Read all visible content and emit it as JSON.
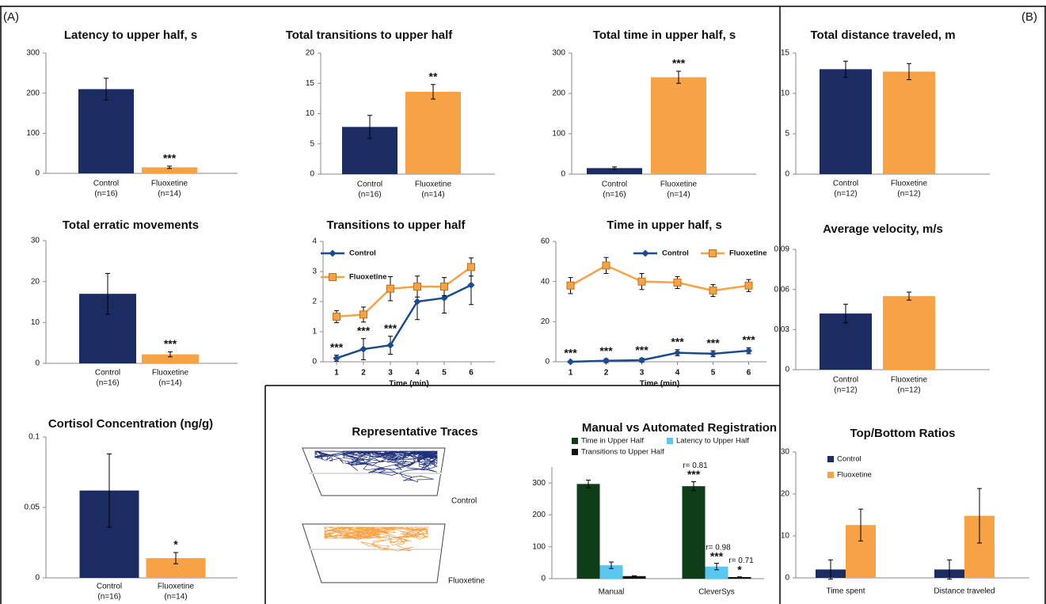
{
  "panel_labels": [
    "(A)",
    "(B)"
  ],
  "traces": {
    "title": "Representative Traces",
    "labels": [
      "Control",
      "Fluoxetine"
    ]
  },
  "chart_data": [
    {
      "type": "bar",
      "title": "Latency to upper half, s",
      "categories": [
        "Control",
        "Fluoxetine"
      ],
      "n_labels": [
        "(n=16)",
        "(n=14)"
      ],
      "values": [
        210,
        15
      ],
      "errors": [
        27,
        3
      ],
      "colors": [
        "#1b2c63",
        "#f7a245"
      ],
      "significance": [
        null,
        "***"
      ],
      "ylim": [
        0,
        300
      ],
      "yticks": [
        0,
        100,
        200,
        300
      ]
    },
    {
      "type": "bar",
      "title": "Total transitions to upper half",
      "categories": [
        "Control",
        "Fluoxetine"
      ],
      "n_labels": [
        "(n=16)",
        "(n=14)"
      ],
      "values": [
        7.8,
        13.6
      ],
      "errors": [
        1.9,
        1.2
      ],
      "colors": [
        "#1b2c63",
        "#f7a245"
      ],
      "significance": [
        null,
        "**"
      ],
      "ylim": [
        0,
        20
      ],
      "yticks": [
        0,
        5,
        10,
        15,
        20
      ]
    },
    {
      "type": "bar",
      "title": "Total time in upper half, s",
      "categories": [
        "Control",
        "Fluoxetine"
      ],
      "n_labels": [
        "(n=16)",
        "(n=14)"
      ],
      "values": [
        15,
        240
      ],
      "errors": [
        3,
        15
      ],
      "colors": [
        "#1b2c63",
        "#f7a245"
      ],
      "significance": [
        null,
        "***"
      ],
      "ylim": [
        0,
        300
      ],
      "yticks": [
        0,
        100,
        200,
        300
      ]
    },
    {
      "type": "bar",
      "title": "Total erratic movements",
      "categories": [
        "Control",
        "Fluoxetine"
      ],
      "n_labels": [
        "(n=16)",
        "(n=14)"
      ],
      "values": [
        17,
        2.2
      ],
      "errors": [
        5,
        0.6
      ],
      "colors": [
        "#1b2c63",
        "#f7a245"
      ],
      "significance": [
        null,
        "***"
      ],
      "ylim": [
        0,
        30
      ],
      "yticks": [
        0,
        10,
        20,
        30
      ]
    },
    {
      "type": "line",
      "title": "Transitions to upper half",
      "xlabel": "Time (min)",
      "x": [
        1,
        2,
        3,
        4,
        5,
        6
      ],
      "xlim": [
        0.5,
        6.5
      ],
      "xticks": [
        1,
        2,
        3,
        4,
        5,
        6
      ],
      "series": [
        {
          "name": "Control",
          "color": "#1b4b8f",
          "marker": "diamond",
          "values": [
            0.12,
            0.42,
            0.55,
            2.0,
            2.12,
            2.55
          ],
          "errors": [
            0.1,
            0.35,
            0.3,
            0.6,
            0.5,
            0.65
          ],
          "significance": [
            "***",
            "***",
            "***",
            null,
            null,
            null
          ]
        },
        {
          "name": "Fluoxetine",
          "color": "#f7a245",
          "marker": "square",
          "values": [
            1.5,
            1.57,
            2.43,
            2.5,
            2.5,
            3.15
          ],
          "errors": [
            0.2,
            0.25,
            0.4,
            0.35,
            0.3,
            0.3
          ]
        }
      ],
      "ylim": [
        0,
        4
      ],
      "yticks": [
        0,
        1,
        2,
        3,
        4
      ],
      "legend": "upper left"
    },
    {
      "type": "line",
      "title": "Time in upper half, s",
      "xlabel": "Time (min)",
      "x": [
        1,
        2,
        3,
        4,
        5,
        6
      ],
      "xlim": [
        0.5,
        6.5
      ],
      "xticks": [
        1,
        2,
        3,
        4,
        5,
        6
      ],
      "series": [
        {
          "name": "Control",
          "color": "#1b4b8f",
          "marker": "diamond",
          "values": [
            0,
            0.5,
            0.8,
            4.5,
            4,
            5.5
          ],
          "errors": [
            0.5,
            1,
            1,
            1.5,
            1.5,
            1.5
          ],
          "significance": [
            "***",
            "***",
            "***",
            "***",
            "***",
            "***"
          ]
        },
        {
          "name": "Fluoxetine",
          "color": "#f7a245",
          "marker": "square",
          "values": [
            38,
            48,
            40,
            39.5,
            35.5,
            38
          ],
          "errors": [
            4,
            4,
            4,
            3,
            3,
            3
          ]
        }
      ],
      "ylim": [
        0,
        60
      ],
      "yticks": [
        0,
        20,
        40,
        60
      ],
      "legend": "upper right"
    },
    {
      "type": "bar",
      "title": "Cortisol Concentration (ng/g)",
      "categories": [
        "Control",
        "Fluoxetine"
      ],
      "n_labels": [
        "(n=16)",
        "(n=14)"
      ],
      "values": [
        0.062,
        0.014
      ],
      "errors": [
        0.026,
        0.004
      ],
      "colors": [
        "#1b2c63",
        "#f7a245"
      ],
      "significance": [
        null,
        "*"
      ],
      "ylim": [
        0,
        0.1
      ],
      "yticks": [
        0,
        0.05,
        0.1
      ]
    },
    {
      "type": "bar",
      "title": "Total distance traveled, m",
      "categories": [
        "Control",
        "Fluoxetine"
      ],
      "n_labels": [
        "(n=12)",
        "(n=12)"
      ],
      "values": [
        13,
        12.7
      ],
      "errors": [
        1,
        1
      ],
      "colors": [
        "#1b2c63",
        "#f7a245"
      ],
      "ylim": [
        0,
        15
      ],
      "yticks": [
        0,
        5,
        10,
        15
      ]
    },
    {
      "type": "bar",
      "title": "Average velocity, m/s",
      "categories": [
        "Control",
        "Fluoxetine"
      ],
      "n_labels": [
        "(n=12)",
        "(n=12)"
      ],
      "values": [
        0.042,
        0.055
      ],
      "errors": [
        0.007,
        0.003
      ],
      "colors": [
        "#1b2c63",
        "#f7a245"
      ],
      "ylim": [
        0,
        0.09
      ],
      "yticks": [
        0,
        0.03,
        0.06,
        0.09
      ]
    },
    {
      "type": "grouped_bar",
      "title": "Top/Bottom Ratios",
      "categories": [
        "Time spent",
        "Distance traveled"
      ],
      "series": [
        {
          "name": "Control",
          "color": "#1b2c63",
          "values": [
            2,
            2
          ],
          "errors": [
            2.3,
            2.3
          ]
        },
        {
          "name": "Fluoxetine",
          "color": "#f7a245",
          "values": [
            12.6,
            14.8
          ],
          "errors": [
            3.8,
            6.5
          ]
        }
      ],
      "ylim": [
        0,
        30
      ],
      "yticks": [
        0,
        10,
        20,
        30
      ],
      "legend": "upper left"
    },
    {
      "type": "grouped_bar",
      "title": "Manual vs Automated Registration",
      "categories": [
        "Manual",
        "CleverSys"
      ],
      "series": [
        {
          "name": "Time in Upper Half",
          "color": "#0e3d17",
          "values": [
            297,
            290
          ],
          "errors": [
            12,
            14
          ],
          "correlation": [
            null,
            "r= 0.81"
          ],
          "significance": [
            null,
            "***"
          ]
        },
        {
          "name": "Latency to Upper Half",
          "color": "#5bc7f0",
          "values": [
            42,
            38
          ],
          "errors": [
            10,
            10
          ],
          "correlation": [
            null,
            "r= 0.98"
          ],
          "significance": [
            null,
            "***"
          ]
        },
        {
          "name": "Transitions to Upper Half",
          "color": "#111111",
          "values": [
            8,
            5
          ],
          "errors": [
            1,
            1
          ],
          "correlation": [
            null,
            "r= 0.71"
          ],
          "significance": [
            null,
            "*"
          ]
        }
      ],
      "ylim": [
        0,
        350
      ],
      "yticks": [
        0,
        100,
        200,
        300
      ],
      "legend": "top"
    }
  ]
}
